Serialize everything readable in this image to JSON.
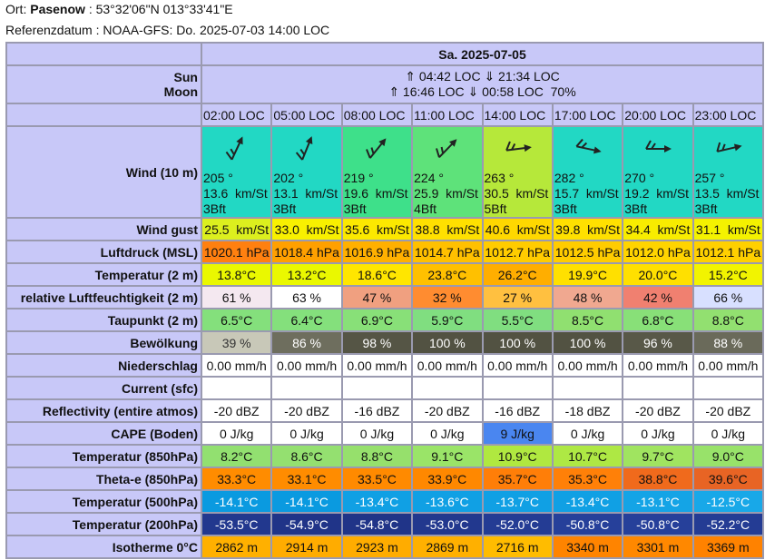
{
  "header": {
    "location_label": "Ort:",
    "location": "Pasenow",
    "coords": ": 53°32'06\"N 013°33'41\"E",
    "reference": "Referenzdatum : NOAA-GFS: Do. 2025-07-03 14:00 LOC"
  },
  "table": {
    "date": "Sa. 2025-07-05",
    "sun_label": "Sun",
    "moon_label": "Moon",
    "sun": "⇑ 04:42 LOC ⇓ 21:34 LOC",
    "moon": "⇑ 16:46 LOC ⇓ 00:58 LOC  70%",
    "times": [
      "02:00 LOC",
      "05:00 LOC",
      "08:00 LOC",
      "11:00 LOC",
      "14:00 LOC",
      "17:00 LOC",
      "20:00 LOC",
      "23:00 LOC"
    ],
    "wind": {
      "label": "Wind (10 m)",
      "cells": [
        {
          "direction": "205 °",
          "speed": "13.6  km/St",
          "bft": "3Bft",
          "color": "#22d8c4"
        },
        {
          "direction": "202 °",
          "speed": "13.1  km/St",
          "bft": "3Bft",
          "color": "#22d8c4"
        },
        {
          "direction": "219 °",
          "speed": "19.6  km/St",
          "bft": "3Bft",
          "color": "#3ee08a"
        },
        {
          "direction": "224 °",
          "speed": "25.9  km/St",
          "bft": "4Bft",
          "color": "#5ee27a"
        },
        {
          "direction": "263 °",
          "speed": "30.5  km/St",
          "bft": "5Bft",
          "color": "#b6e83a"
        },
        {
          "direction": "282 °",
          "speed": "15.7  km/St",
          "bft": "3Bft",
          "color": "#22d8c4"
        },
        {
          "direction": "270 °",
          "speed": "19.2  km/St",
          "bft": "3Bft",
          "color": "#22d8c4"
        },
        {
          "direction": "257 °",
          "speed": "13.5  km/St",
          "bft": "3Bft",
          "color": "#22d8c4"
        }
      ]
    },
    "rows": [
      {
        "label": "Wind gust",
        "cells": [
          {
            "text": "25.5  km/St",
            "color": "#dcef1e"
          },
          {
            "text": "33.0  km/St",
            "color": "#f8f000"
          },
          {
            "text": "35.6  km/St",
            "color": "#fce800"
          },
          {
            "text": "38.8  km/St",
            "color": "#ffe000"
          },
          {
            "text": "40.6  km/St",
            "color": "#ffd800"
          },
          {
            "text": "39.8  km/St",
            "color": "#ffe000"
          },
          {
            "text": "34.4  km/St",
            "color": "#f8ec00"
          },
          {
            "text": "31.1  km/St",
            "color": "#f4f200"
          }
        ]
      },
      {
        "label": "Luftdruck (MSL)",
        "cells": [
          {
            "text": "1020.1 hPa",
            "color": "#ff8010"
          },
          {
            "text": "1018.4 hPa",
            "color": "#ffa000"
          },
          {
            "text": "1016.9 hPa",
            "color": "#ffb000"
          },
          {
            "text": "1014.7 hPa",
            "color": "#ffc000"
          },
          {
            "text": "1012.7 hPa",
            "color": "#ffcc00"
          },
          {
            "text": "1012.5 hPa",
            "color": "#ffcc00"
          },
          {
            "text": "1012.0 hPa",
            "color": "#ffd400"
          },
          {
            "text": "1012.1 hPa",
            "color": "#ffd000"
          }
        ]
      },
      {
        "label": "Temperatur (2 m)",
        "cells": [
          {
            "text": "13.8°C",
            "color": "#eaf800"
          },
          {
            "text": "13.2°C",
            "color": "#eaf800"
          },
          {
            "text": "18.6°C",
            "color": "#ffe600"
          },
          {
            "text": "23.8°C",
            "color": "#ffc000"
          },
          {
            "text": "26.2°C",
            "color": "#ffae00"
          },
          {
            "text": "19.9°C",
            "color": "#ffe000"
          },
          {
            "text": "20.0°C",
            "color": "#ffe000"
          },
          {
            "text": "15.2°C",
            "color": "#f2f400"
          }
        ]
      },
      {
        "label": "relative Luftfeuchtigkeit (2 m)",
        "cells": [
          {
            "text": "61 %",
            "color": "#f4e8f0"
          },
          {
            "text": "63 %",
            "color": "#ffffff"
          },
          {
            "text": "47 %",
            "color": "#f0a080"
          },
          {
            "text": "32 %",
            "color": "#ff8c30"
          },
          {
            "text": "27 %",
            "color": "#ffc040"
          },
          {
            "text": "48 %",
            "color": "#f0a890"
          },
          {
            "text": "42 %",
            "color": "#f08070"
          },
          {
            "text": "66 %",
            "color": "#d8e0ff"
          }
        ]
      },
      {
        "label": "Taupunkt (2 m)",
        "cells": [
          {
            "text": "6.5°C",
            "color": "#84e07c"
          },
          {
            "text": "6.4°C",
            "color": "#84e07c"
          },
          {
            "text": "6.9°C",
            "color": "#88e078"
          },
          {
            "text": "5.9°C",
            "color": "#80de80"
          },
          {
            "text": "5.5°C",
            "color": "#80de80"
          },
          {
            "text": "8.5°C",
            "color": "#90e070"
          },
          {
            "text": "6.8°C",
            "color": "#88e078"
          },
          {
            "text": "8.8°C",
            "color": "#92e070"
          }
        ]
      },
      {
        "label": "Bewölkung",
        "cells": [
          {
            "text": "39 %",
            "color": "#c8c8b8",
            "ink": "#333333"
          },
          {
            "text": "86 %",
            "color": "#6e6e5e",
            "ink": "#ffffff"
          },
          {
            "text": "98 %",
            "color": "#555545",
            "ink": "#ffffff"
          },
          {
            "text": "100 %",
            "color": "#525242",
            "ink": "#ffffff"
          },
          {
            "text": "100 %",
            "color": "#525242",
            "ink": "#ffffff"
          },
          {
            "text": "100 %",
            "color": "#525242",
            "ink": "#ffffff"
          },
          {
            "text": "96 %",
            "color": "#585848",
            "ink": "#ffffff"
          },
          {
            "text": "88 %",
            "color": "#6a6a5a",
            "ink": "#ffffff"
          }
        ]
      },
      {
        "label": "Niederschlag",
        "cells": [
          {
            "text": "0.00 mm/h",
            "color": "#ffffff"
          },
          {
            "text": "0.00 mm/h",
            "color": "#ffffff"
          },
          {
            "text": "0.00 mm/h",
            "color": "#ffffff"
          },
          {
            "text": "0.00 mm/h",
            "color": "#ffffff"
          },
          {
            "text": "0.00 mm/h",
            "color": "#ffffff"
          },
          {
            "text": "0.00 mm/h",
            "color": "#ffffff"
          },
          {
            "text": "0.00 mm/h",
            "color": "#ffffff"
          },
          {
            "text": "0.00 mm/h",
            "color": "#ffffff"
          }
        ]
      },
      {
        "label": "Current (sfc)",
        "cells": [
          {
            "color": "#ffffff"
          },
          {
            "color": "#ffffff"
          },
          {
            "color": "#ffffff"
          },
          {
            "color": "#ffffff"
          },
          {
            "color": "#ffffff"
          },
          {
            "color": "#ffffff"
          },
          {
            "color": "#ffffff"
          },
          {
            "color": "#ffffff"
          }
        ]
      },
      {
        "label": "Reflectivity (entire atmos)",
        "cells": [
          {
            "text": "-20 dBZ",
            "color": "#ffffff"
          },
          {
            "text": "-20 dBZ",
            "color": "#ffffff"
          },
          {
            "text": "-16 dBZ",
            "color": "#ffffff"
          },
          {
            "text": "-20 dBZ",
            "color": "#ffffff"
          },
          {
            "text": "-16 dBZ",
            "color": "#ffffff"
          },
          {
            "text": "-18 dBZ",
            "color": "#ffffff"
          },
          {
            "text": "-20 dBZ",
            "color": "#ffffff"
          },
          {
            "text": "-20 dBZ",
            "color": "#ffffff"
          }
        ]
      },
      {
        "label": "CAPE (Boden)",
        "cells": [
          {
            "text": "0 J/kg",
            "color": "#ffffff"
          },
          {
            "text": "0 J/kg",
            "color": "#ffffff"
          },
          {
            "text": "0 J/kg",
            "color": "#ffffff"
          },
          {
            "text": "0 J/kg",
            "color": "#ffffff"
          },
          {
            "text": "9 J/kg",
            "color": "#4a86f0"
          },
          {
            "text": "0 J/kg",
            "color": "#ffffff"
          },
          {
            "text": "0 J/kg",
            "color": "#ffffff"
          },
          {
            "text": "0 J/kg",
            "color": "#ffffff"
          }
        ]
      },
      {
        "label": "Temperatur (850hPa)",
        "cells": [
          {
            "text": "8.2°C",
            "color": "#92e070"
          },
          {
            "text": "8.6°C",
            "color": "#94e070"
          },
          {
            "text": "8.8°C",
            "color": "#96e06c"
          },
          {
            "text": "9.1°C",
            "color": "#9ae468"
          },
          {
            "text": "10.9°C",
            "color": "#b0e840"
          },
          {
            "text": "10.7°C",
            "color": "#aee844"
          },
          {
            "text": "9.7°C",
            "color": "#a0e460"
          },
          {
            "text": "9.0°C",
            "color": "#98e26a"
          }
        ]
      },
      {
        "label": "Theta-e (850hPa)",
        "cells": [
          {
            "text": "33.3°C",
            "color": "#ff8c00"
          },
          {
            "text": "33.1°C",
            "color": "#ff8c00"
          },
          {
            "text": "33.5°C",
            "color": "#ff8a00"
          },
          {
            "text": "33.9°C",
            "color": "#ff8800"
          },
          {
            "text": "35.7°C",
            "color": "#ff7e08"
          },
          {
            "text": "35.3°C",
            "color": "#ff8008"
          },
          {
            "text": "38.8°C",
            "color": "#f06a1c"
          },
          {
            "text": "39.6°C",
            "color": "#e86424"
          }
        ]
      },
      {
        "label": "Temperatur (500hPa)",
        "cells": [
          {
            "text": "-14.1°C",
            "color": "#0a9ae0",
            "ink": "#ffffff"
          },
          {
            "text": "-14.1°C",
            "color": "#0a9ae0",
            "ink": "#ffffff"
          },
          {
            "text": "-13.4°C",
            "color": "#10a0e4",
            "ink": "#ffffff"
          },
          {
            "text": "-13.6°C",
            "color": "#10a0e4",
            "ink": "#ffffff"
          },
          {
            "text": "-13.7°C",
            "color": "#10a0e4",
            "ink": "#ffffff"
          },
          {
            "text": "-13.4°C",
            "color": "#10a0e4",
            "ink": "#ffffff"
          },
          {
            "text": "-13.1°C",
            "color": "#14a4e6",
            "ink": "#ffffff"
          },
          {
            "text": "-12.5°C",
            "color": "#18a8e8",
            "ink": "#ffffff"
          }
        ]
      },
      {
        "label": "Temperatur (200hPa)",
        "cells": [
          {
            "text": "-53.5°C",
            "color": "#22388e",
            "ink": "#ffffff"
          },
          {
            "text": "-54.9°C",
            "color": "#203488",
            "ink": "#ffffff"
          },
          {
            "text": "-54.8°C",
            "color": "#203488",
            "ink": "#ffffff"
          },
          {
            "text": "-53.0°C",
            "color": "#22388e",
            "ink": "#ffffff"
          },
          {
            "text": "-52.0°C",
            "color": "#243c94",
            "ink": "#ffffff"
          },
          {
            "text": "-50.8°C",
            "color": "#26409a",
            "ink": "#ffffff"
          },
          {
            "text": "-50.8°C",
            "color": "#26409a",
            "ink": "#ffffff"
          },
          {
            "text": "-52.2°C",
            "color": "#243c94",
            "ink": "#ffffff"
          }
        ]
      },
      {
        "label": "Isotherme 0°C",
        "cells": [
          {
            "text": "2862 m",
            "color": "#ffb000"
          },
          {
            "text": "2914 m",
            "color": "#ffac00"
          },
          {
            "text": "2923 m",
            "color": "#ffac00"
          },
          {
            "text": "2869 m",
            "color": "#ffb000"
          },
          {
            "text": "2716 m",
            "color": "#ffbc00"
          },
          {
            "text": "3340 m",
            "color": "#ff8400"
          },
          {
            "text": "3301 m",
            "color": "#ff8800"
          },
          {
            "text": "3369 m",
            "color": "#ff8200"
          }
        ]
      }
    ]
  }
}
